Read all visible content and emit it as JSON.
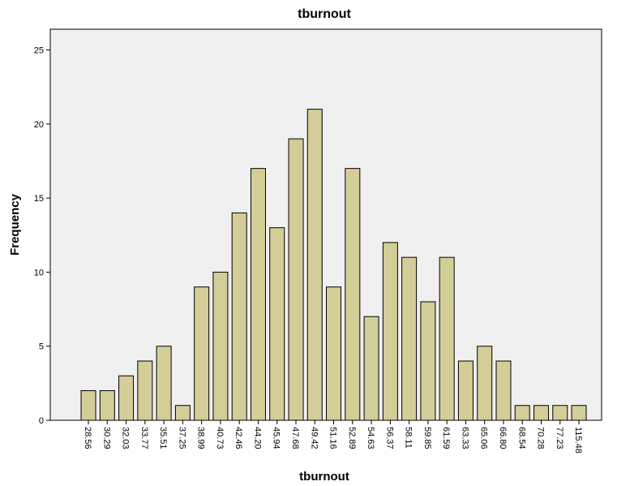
{
  "chart_data": {
    "type": "bar",
    "title": "tburnout",
    "x_label": "tburnout",
    "y_label": "Frequency",
    "categories": [
      "28.56",
      "30.29",
      "32.03",
      "33.77",
      "35.51",
      "37.25",
      "38.99",
      "40.73",
      "42.46",
      "44.20",
      "45.94",
      "47.68",
      "49.42",
      "51.16",
      "52.89",
      "54.63",
      "56.37",
      "58.11",
      "59.85",
      "61.59",
      "63.33",
      "65.06",
      "66.80",
      "68.54",
      "70.28",
      "77.23",
      "115.48"
    ],
    "values": [
      2,
      2,
      3,
      4,
      5,
      1,
      9,
      10,
      14,
      17,
      13,
      19,
      21,
      9,
      17,
      7,
      12,
      11,
      8,
      11,
      4,
      5,
      4,
      1,
      1,
      1,
      1
    ],
    "color": "#d3ce97",
    "ylim": [
      0,
      26.4
    ],
    "yticks": [
      0,
      5,
      10,
      15,
      20,
      25
    ],
    "grid": false
  }
}
